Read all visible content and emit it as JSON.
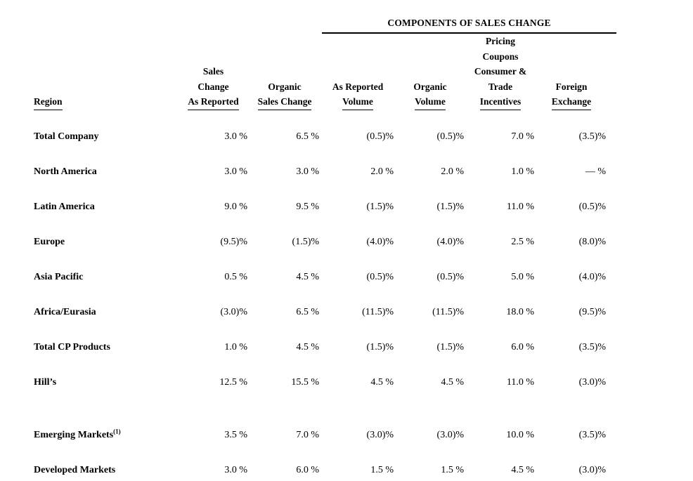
{
  "banner": {
    "title": "COMPONENTS OF SALES CHANGE"
  },
  "table": {
    "region_header": "Region",
    "columns": [
      {
        "lines": [
          "Sales",
          "Change"
        ],
        "underlined": "As Reported"
      },
      {
        "lines": [
          "Organic"
        ],
        "underlined": "Sales Change"
      },
      {
        "lines": [
          "As Reported"
        ],
        "underlined": "Volume"
      },
      {
        "lines": [
          "Organic"
        ],
        "underlined": "Volume"
      },
      {
        "lines": [
          "Pricing",
          "Coupons",
          "Consumer &",
          "Trade"
        ],
        "underlined": "Incentives"
      },
      {
        "lines": [
          "Foreign"
        ],
        "underlined": "Exchange"
      }
    ],
    "rows": [
      {
        "region": "Total Company",
        "sup": "",
        "values": [
          "3.0 %",
          "6.5 %",
          "(0.5)%",
          "(0.5)%",
          "7.0 %",
          "(3.5)%"
        ]
      },
      {
        "region": "North America",
        "sup": "",
        "values": [
          "3.0 %",
          "3.0 %",
          "2.0 %",
          "2.0 %",
          "1.0 %",
          "— %"
        ]
      },
      {
        "region": "Latin America",
        "sup": "",
        "values": [
          "9.0 %",
          "9.5 %",
          "(1.5)%",
          "(1.5)%",
          "11.0 %",
          "(0.5)%"
        ]
      },
      {
        "region": "Europe",
        "sup": "",
        "values": [
          "(9.5)%",
          "(1.5)%",
          "(4.0)%",
          "(4.0)%",
          "2.5 %",
          "(8.0)%"
        ]
      },
      {
        "region": "Asia Pacific",
        "sup": "",
        "values": [
          "0.5 %",
          "4.5 %",
          "(0.5)%",
          "(0.5)%",
          "5.0 %",
          "(4.0)%"
        ]
      },
      {
        "region": "Africa/Eurasia",
        "sup": "",
        "values": [
          "(3.0)%",
          "6.5 %",
          "(11.5)%",
          "(11.5)%",
          "18.0 %",
          "(9.5)%"
        ]
      },
      {
        "region": "Total CP Products",
        "sup": "",
        "values": [
          "1.0 %",
          "4.5 %",
          "(1.5)%",
          "(1.5)%",
          "6.0 %",
          "(3.5)%"
        ]
      },
      {
        "region": "Hill’s",
        "sup": "",
        "values": [
          "12.5 %",
          "15.5 %",
          "4.5 %",
          "4.5 %",
          "11.0 %",
          "(3.0)%"
        ]
      },
      {
        "region": "Emerging Markets",
        "sup": "(1)",
        "values": [
          "3.5 %",
          "7.0 %",
          "(3.0)%",
          "(3.0)%",
          "10.0 %",
          "(3.5)%"
        ]
      },
      {
        "region": "Developed Markets",
        "sup": "",
        "values": [
          "3.0 %",
          "6.0 %",
          "1.5 %",
          "1.5 %",
          "4.5 %",
          "(3.0)%"
        ]
      }
    ]
  }
}
